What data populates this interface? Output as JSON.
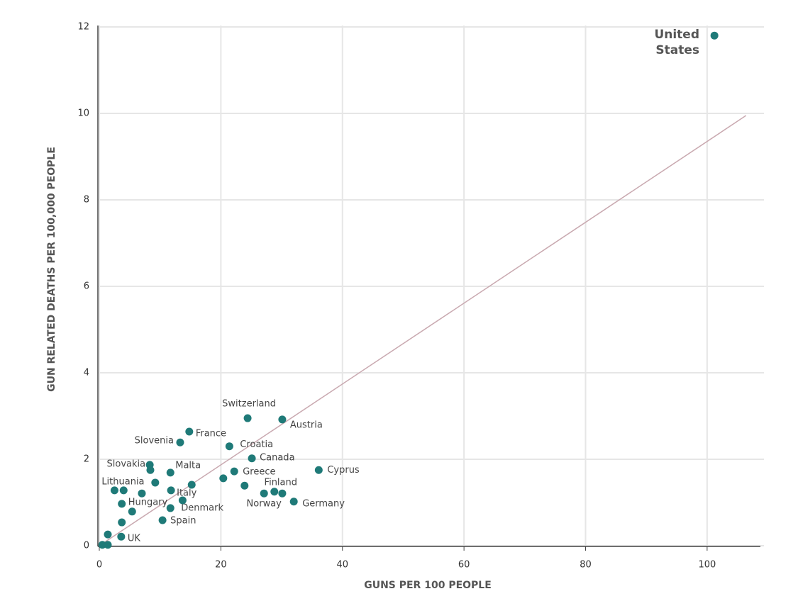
{
  "chart_data": {
    "type": "scatter",
    "xlabel": "GUNS PER 100 PEOPLE",
    "ylabel": "GUN RELATED DEATHS PER 100,000 PEOPLE",
    "xlim": [
      0,
      109
    ],
    "xticks": [
      0,
      20,
      40,
      60,
      80,
      100
    ],
    "ylim": [
      0,
      12
    ],
    "yticks": [
      0,
      2,
      4,
      6,
      8,
      10,
      12
    ],
    "grid": true,
    "color": "#1f7a78",
    "labels": [
      "United States",
      "Switzerland",
      "Austria",
      "France",
      "Slovenia",
      "Croatia",
      "Canada",
      "Cyprus",
      "Greece",
      "Malta",
      "Slovakia",
      "Finland",
      "Norway",
      "Germany",
      "Lithuania",
      "Italy",
      "Denmark",
      "Hungary",
      "Spain",
      "UK",
      null,
      null,
      null,
      null,
      null,
      null,
      null,
      null,
      null,
      null,
      null,
      null,
      null,
      null
    ],
    "x": [
      101.2,
      24.4,
      30.1,
      14.8,
      13.3,
      21.4,
      25.1,
      36.1,
      22.2,
      11.7,
      8.3,
      28.8,
      27.1,
      32.0,
      2.5,
      11.8,
      11.7,
      3.7,
      10.4,
      3.6,
      8.4,
      20.4,
      23.9,
      30.1,
      4.0,
      7.0,
      9.2,
      15.2,
      13.7,
      5.4,
      3.7,
      1.4,
      0.5,
      1.4
    ],
    "y": [
      11.8,
      2.95,
      2.92,
      2.64,
      2.39,
      2.3,
      2.02,
      1.75,
      1.72,
      1.69,
      1.87,
      1.25,
      1.21,
      1.02,
      1.28,
      1.28,
      0.87,
      0.97,
      0.59,
      0.21,
      1.75,
      1.56,
      1.39,
      1.21,
      1.28,
      1.21,
      1.46,
      1.41,
      1.05,
      0.79,
      0.54,
      0.26,
      0.02,
      0.02
    ],
    "trendline": {
      "x": [
        0,
        106.4
      ],
      "y": [
        0,
        9.95
      ],
      "color": "#c9a9b0"
    }
  }
}
